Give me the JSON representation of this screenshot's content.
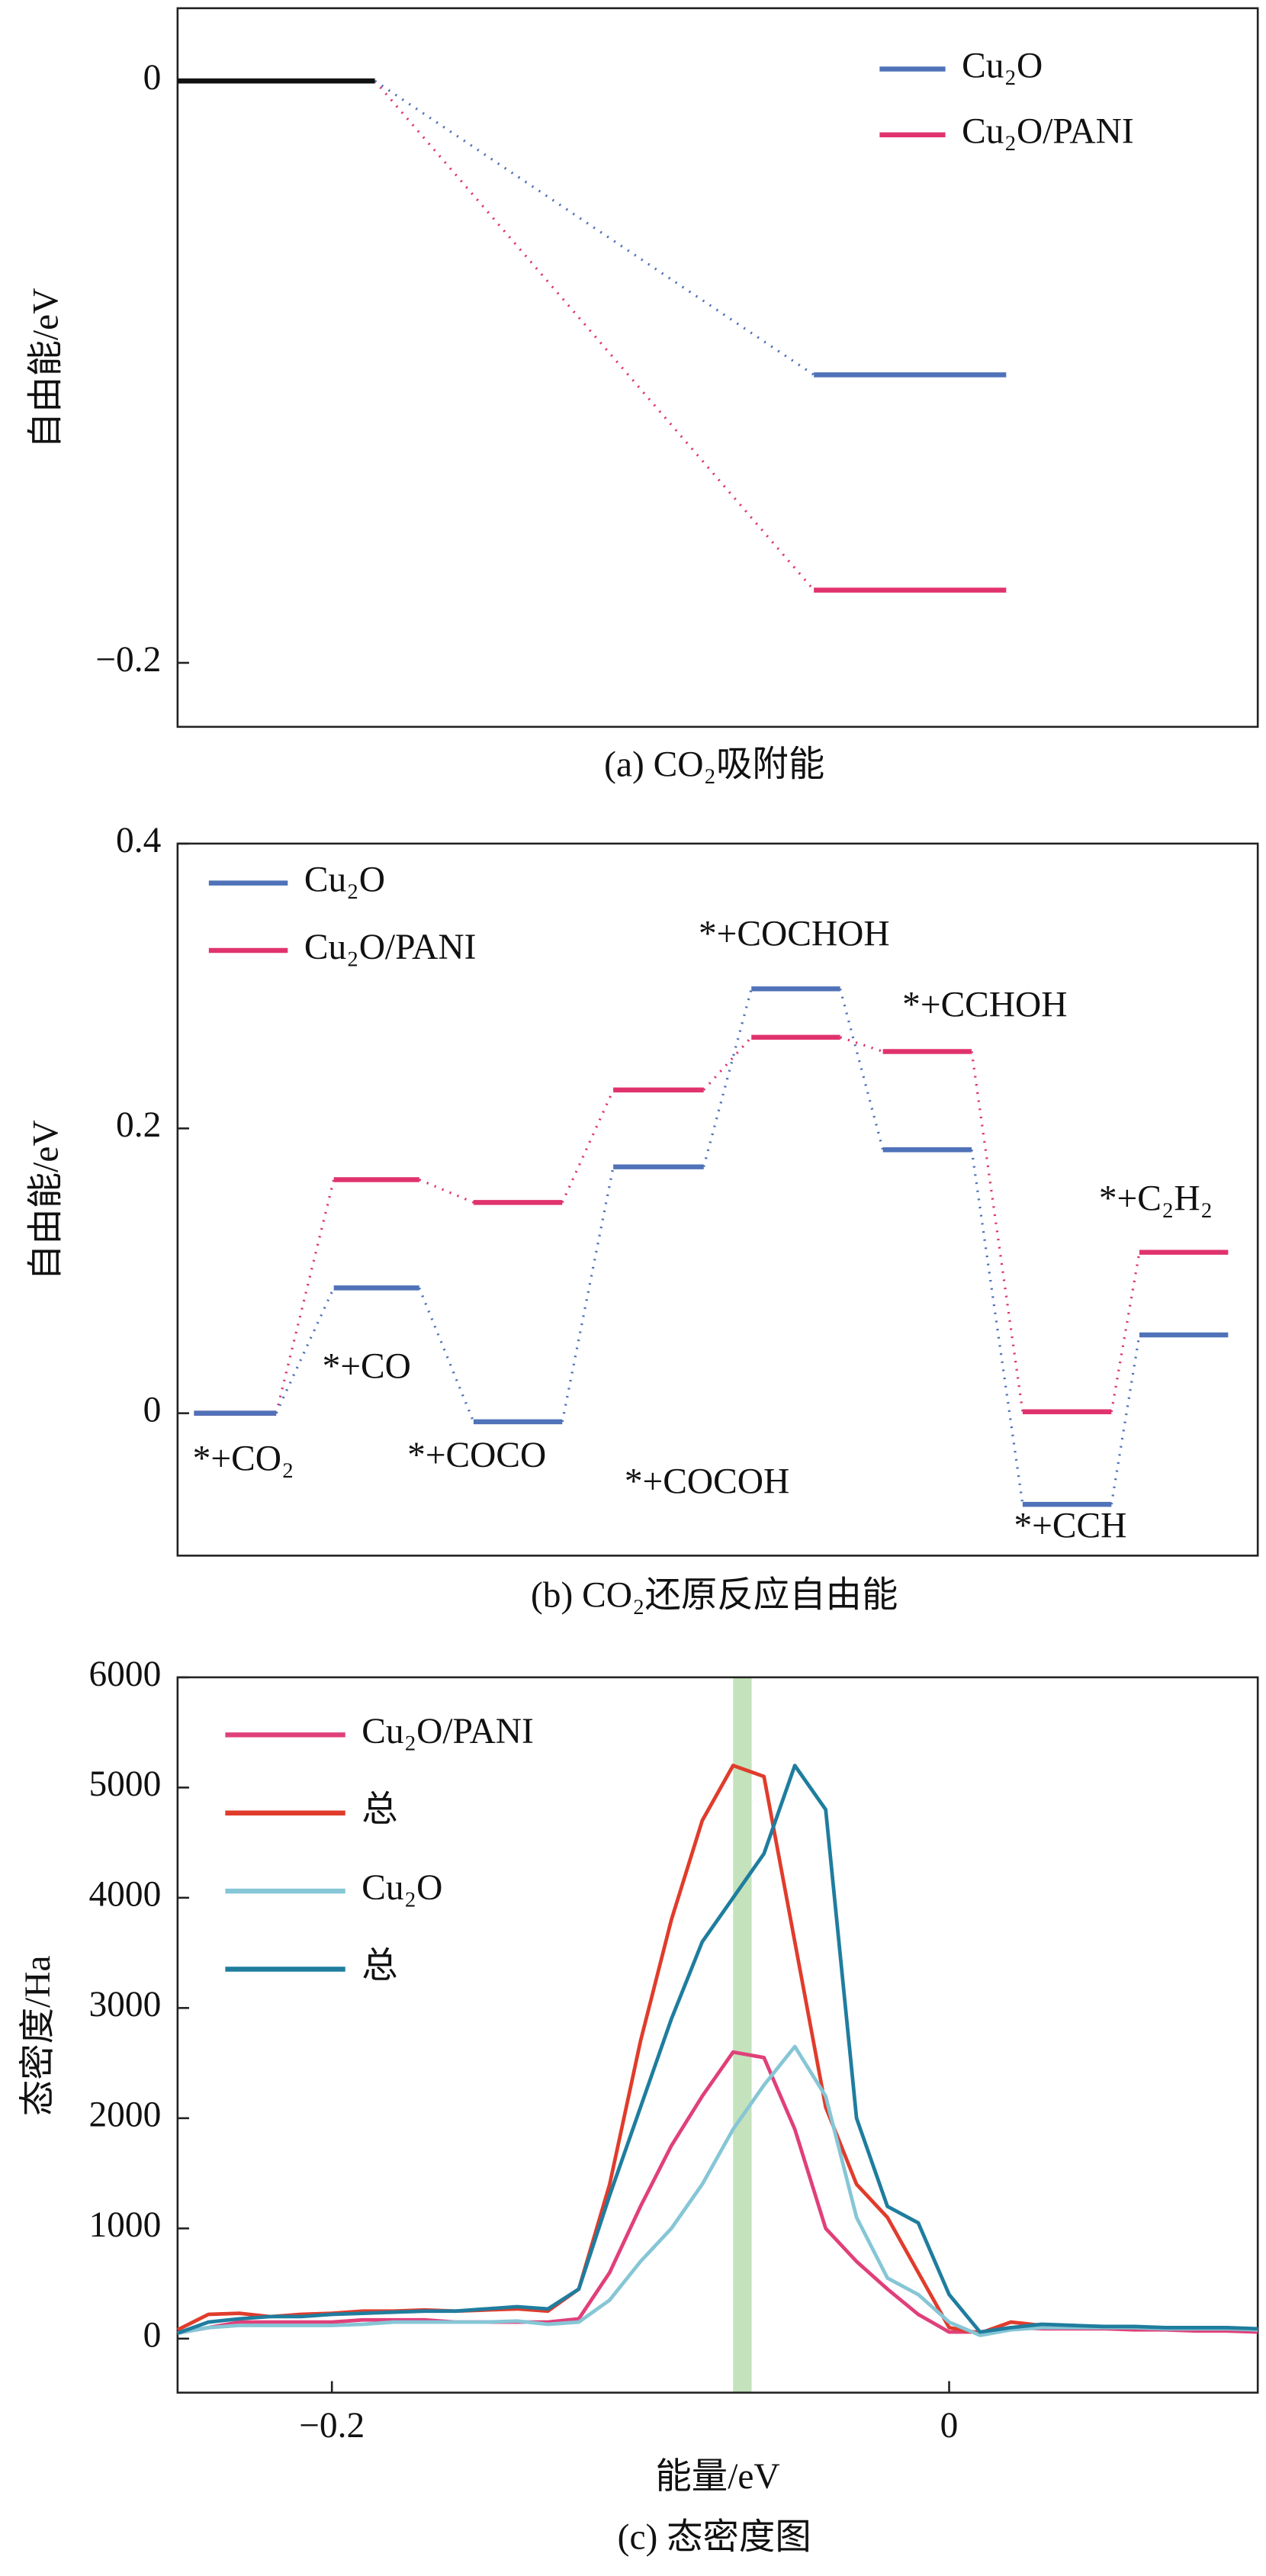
{
  "chart_data": [
    {
      "type": "energy_levels",
      "title": "(a) CO₂吸附能",
      "ylabel": "自由能/eV",
      "ylim": [
        -0.222,
        0.025
      ],
      "yticks": [
        0,
        {
          "value": -0.2,
          "label": "−0.2"
        }
      ],
      "first_level_color": "#111111",
      "series": [
        {
          "name": "Cu₂O",
          "color": "#4f72b8",
          "values": [
            0,
            -0.101
          ]
        },
        {
          "name": "Cu₂O/PANI",
          "color": "#e0336e",
          "values": [
            0,
            -0.175
          ]
        }
      ]
    },
    {
      "type": "energy_levels",
      "title": "(b) CO₂还原反应自由能",
      "ylabel": "自由能/eV",
      "ylim": [
        -0.1,
        0.4
      ],
      "yticks": [
        0,
        0.2,
        0.4
      ],
      "categories": [
        "*+CO₂",
        "*+CO",
        "*+COCO",
        "*+COCOH",
        "*+COCHOH",
        "*+CCHOH",
        "*+CCH",
        "*+C₂H₂"
      ],
      "series": [
        {
          "name": "Cu₂O",
          "color": "#4f72b8",
          "values": [
            0,
            0.088,
            -0.006,
            0.173,
            0.298,
            0.185,
            -0.064,
            0.055
          ]
        },
        {
          "name": "Cu₂O/PANI",
          "color": "#e0336e",
          "values": [
            0,
            0.164,
            0.148,
            0.227,
            0.264,
            0.254,
            0.001,
            0.113
          ]
        }
      ]
    },
    {
      "type": "line",
      "title": "(c) 态密度图",
      "ylabel": "态密度/Ha",
      "xlabel": "能量/eV",
      "xlim": [
        -0.25,
        0.1
      ],
      "ylim": [
        -490,
        6000
      ],
      "xticks": [
        {
          "value": -0.2,
          "label": "−0.2"
        },
        0
      ],
      "yticks": [
        0,
        1000,
        2000,
        3000,
        4000,
        5000,
        6000
      ],
      "highlight_band": [
        -0.07,
        -0.064
      ],
      "highlight_color": "#b5dbaa",
      "x": [
        -0.25,
        -0.24,
        -0.23,
        -0.22,
        -0.21,
        -0.2,
        -0.19,
        -0.18,
        -0.17,
        -0.16,
        -0.15,
        -0.14,
        -0.13,
        -0.12,
        -0.11,
        -0.1,
        -0.09,
        -0.08,
        -0.07,
        -0.06,
        -0.05,
        -0.04,
        -0.03,
        -0.02,
        -0.01,
        0,
        0.01,
        0.02,
        0.03,
        0.04,
        0.05,
        0.06,
        0.07,
        0.08,
        0.09,
        0.1
      ],
      "series": [
        {
          "name": "Cu₂O/PANI",
          "color": "#e0407a",
          "values": [
            50,
            100,
            150,
            150,
            150,
            150,
            170,
            170,
            170,
            150,
            150,
            150,
            150,
            180,
            600,
            1200,
            1750,
            2200,
            2600,
            2550,
            1900,
            1000,
            700,
            450,
            220,
            60,
            60,
            100,
            90,
            90,
            90,
            80,
            80,
            70,
            70,
            60
          ]
        },
        {
          "name": "总",
          "color": "#e03c2c",
          "values": [
            80,
            220,
            230,
            200,
            220,
            230,
            250,
            250,
            260,
            250,
            260,
            270,
            250,
            450,
            1400,
            2700,
            3800,
            4700,
            5200,
            5100,
            3600,
            2100,
            1400,
            1100,
            600,
            100,
            50,
            150,
            120,
            120,
            100,
            100,
            100,
            100,
            90,
            80
          ]
        },
        {
          "name": "Cu₂O",
          "color": "#86c6d6",
          "values": [
            50,
            100,
            120,
            120,
            120,
            120,
            130,
            150,
            150,
            150,
            150,
            160,
            130,
            150,
            350,
            700,
            1000,
            1400,
            1900,
            2300,
            2650,
            2200,
            1100,
            550,
            400,
            150,
            30,
            80,
            100,
            100,
            100,
            100,
            90,
            90,
            90,
            80
          ]
        },
        {
          "name": "总",
          "color": "#1f7d9e",
          "values": [
            50,
            150,
            180,
            200,
            200,
            220,
            230,
            240,
            250,
            250,
            270,
            290,
            270,
            450,
            1300,
            2100,
            2900,
            3600,
            4000,
            4400,
            5200,
            4800,
            2000,
            1200,
            1050,
            400,
            60,
            100,
            130,
            120,
            110,
            110,
            100,
            100,
            100,
            90
          ]
        }
      ]
    }
  ]
}
